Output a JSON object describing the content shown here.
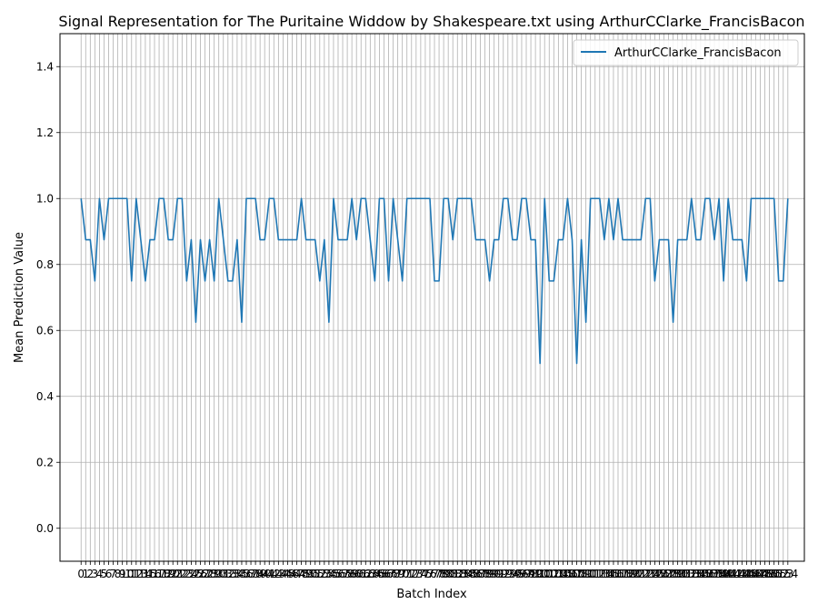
{
  "chart_data": {
    "type": "line",
    "title": "Signal Representation for The Puritaine Widdow by Shakespeare.txt using ArthurCClarke_FrancisBacon",
    "xlabel": "Batch Index",
    "ylabel": "Mean Prediction Value",
    "ylim": [
      -0.1,
      1.5
    ],
    "xlim": [
      -4.6,
      157.6
    ],
    "grid": true,
    "legend_placement": "top-right",
    "y_ticks": [
      "0.0",
      "0.2",
      "0.4",
      "0.6",
      "0.8",
      "1.0",
      "1.2",
      "1.4"
    ],
    "y_tick_values": [
      0.0,
      0.2,
      0.4,
      0.6,
      0.8,
      1.0,
      1.2,
      1.4
    ],
    "series": [
      {
        "name": "ArthurCClarke_FrancisBacon",
        "color": "#1f77b4",
        "values": [
          1.0,
          0.875,
          0.875,
          0.75,
          1.0,
          0.875,
          1.0,
          1.0,
          1.0,
          1.0,
          1.0,
          0.75,
          1.0,
          0.875,
          0.75,
          0.875,
          0.875,
          1.0,
          1.0,
          0.875,
          0.875,
          1.0,
          1.0,
          0.75,
          0.875,
          0.625,
          0.875,
          0.75,
          0.875,
          0.75,
          1.0,
          0.875,
          0.75,
          0.75,
          0.875,
          0.625,
          1.0,
          1.0,
          1.0,
          0.875,
          0.875,
          1.0,
          1.0,
          0.875,
          0.875,
          0.875,
          0.875,
          0.875,
          1.0,
          0.875,
          0.875,
          0.875,
          0.75,
          0.875,
          0.625,
          1.0,
          0.875,
          0.875,
          0.875,
          1.0,
          0.875,
          1.0,
          1.0,
          0.875,
          0.75,
          1.0,
          1.0,
          0.75,
          1.0,
          0.875,
          0.75,
          1.0,
          1.0,
          1.0,
          1.0,
          1.0,
          1.0,
          0.75,
          0.75,
          1.0,
          1.0,
          0.875,
          1.0,
          1.0,
          1.0,
          1.0,
          0.875,
          0.875,
          0.875,
          0.75,
          0.875,
          0.875,
          1.0,
          1.0,
          0.875,
          0.875,
          1.0,
          1.0,
          0.875,
          0.875,
          0.5,
          1.0,
          0.75,
          0.75,
          0.875,
          0.875,
          1.0,
          0.875,
          0.5,
          0.875,
          0.625,
          1.0,
          1.0,
          1.0,
          0.875,
          1.0,
          0.875,
          1.0,
          0.875,
          0.875,
          0.875,
          0.875,
          0.875,
          1.0,
          1.0,
          0.75,
          0.875,
          0.875,
          0.875,
          0.625,
          0.875,
          0.875,
          0.875,
          1.0,
          0.875,
          0.875,
          1.0,
          1.0,
          0.875,
          1.0,
          0.75,
          1.0,
          0.875,
          0.875,
          0.875,
          0.75,
          1.0,
          1.0,
          1.0,
          1.0,
          1.0,
          1.0,
          0.75,
          0.75,
          1.0
        ]
      }
    ]
  }
}
